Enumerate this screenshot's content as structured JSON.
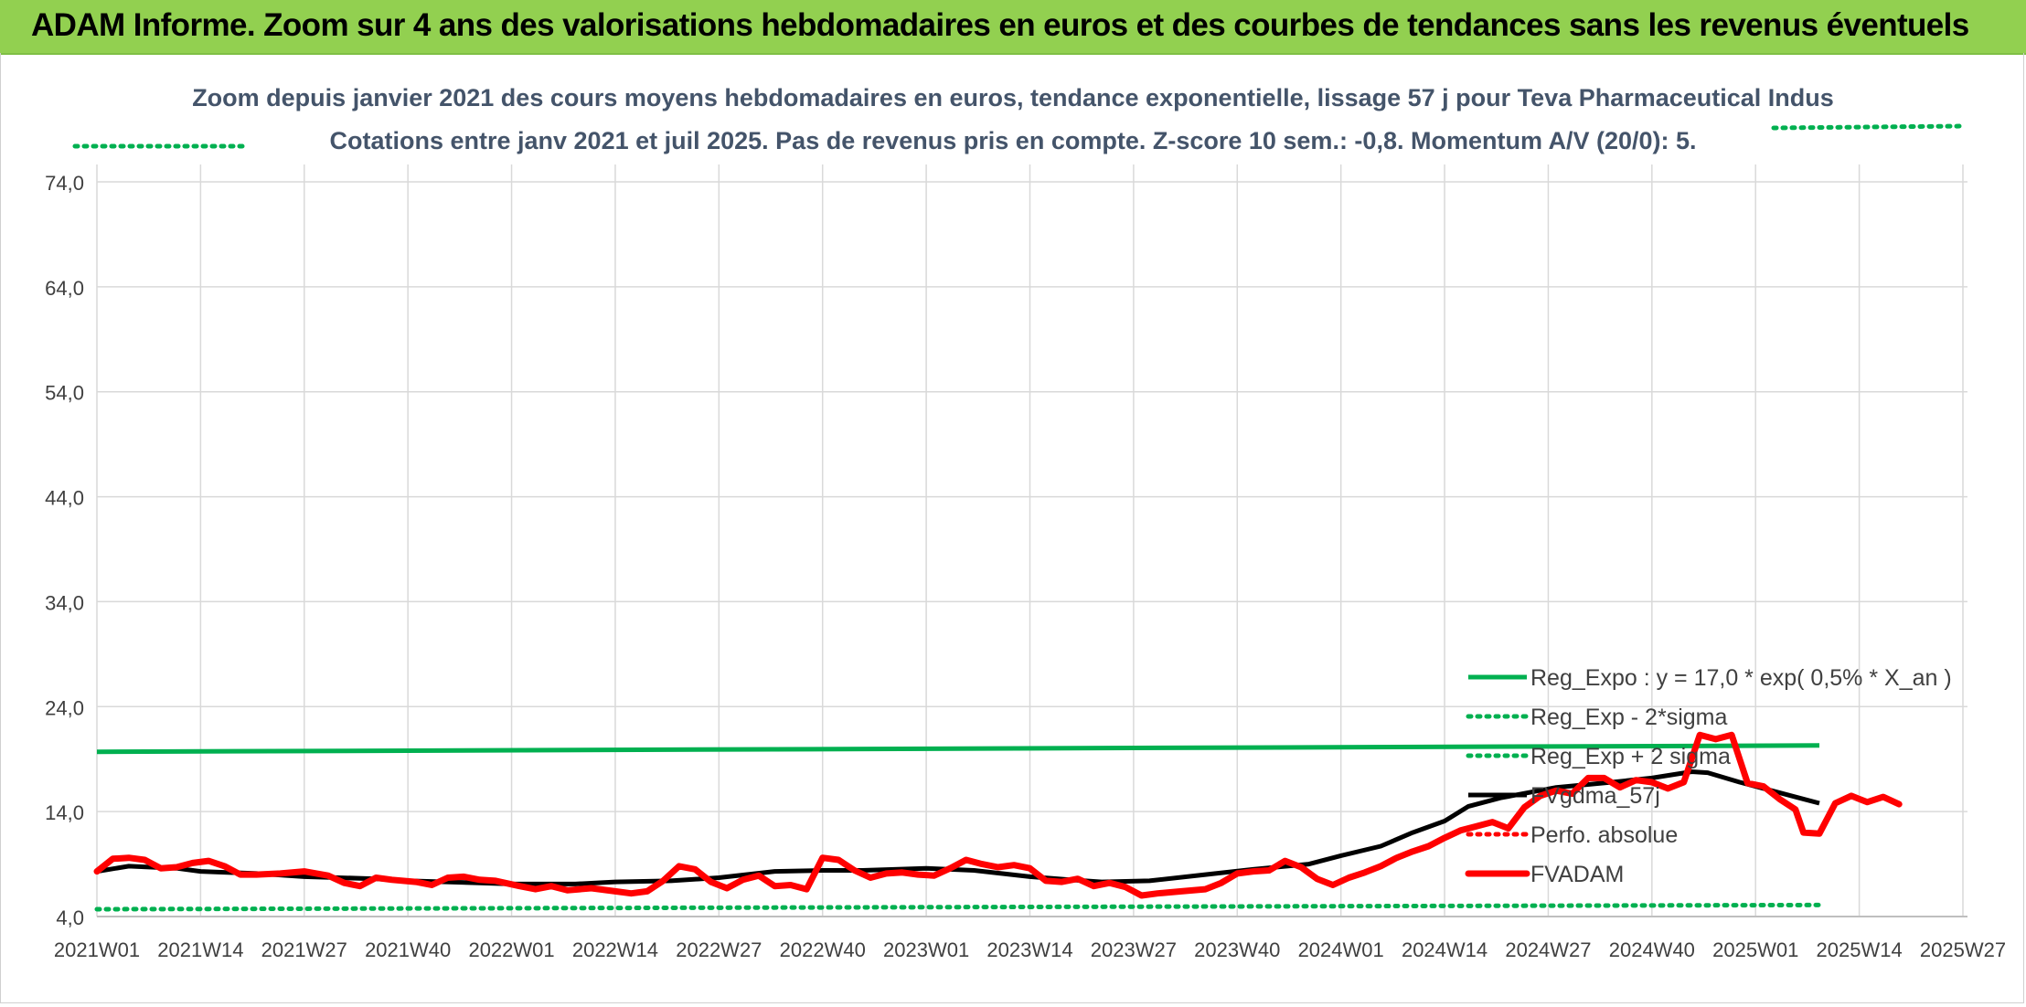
{
  "banner": {
    "title": "ADAM Informe. Zoom sur 4 ans des valorisations hebdomadaires en euros et des courbes de tendances sans les revenus éventuels"
  },
  "colors": {
    "banner": "#92d050",
    "reg_expo": "#00b050",
    "fvadam": "#ff0000",
    "mma": "#000000",
    "grid": "#d9d9d9",
    "title_text": "#44546a"
  },
  "chart_data": {
    "type": "line",
    "title": "Zoom depuis janvier 2021 des cours moyens hebdomadaires en euros, tendance exponentielle, lissage 57 j pour Teva Pharmaceutical Indus",
    "subtitle": "Cotations entre janv 2021 et juil 2025. Pas de revenus pris en compte. Z-score 10 sem.: -0,8. Momentum A/V (20/0): 5.",
    "xlabel": "",
    "ylabel": "",
    "ylim": [
      4.0,
      74.0
    ],
    "yticks": [
      "4,0",
      "14,0",
      "24,0",
      "34,0",
      "44,0",
      "54,0",
      "64,0",
      "74,0"
    ],
    "x_ticks": [
      "2021W01",
      "2021W14",
      "2021W27",
      "2021W40",
      "2022W01",
      "2022W14",
      "2022W27",
      "2022W40",
      "2023W01",
      "2023W14",
      "2023W27",
      "2023W40",
      "2024W01",
      "2024W14",
      "2024W27",
      "2024W40",
      "2025W01",
      "2025W14",
      "2025W27"
    ],
    "grid": true,
    "legend_position": "right",
    "legend": [
      "Reg_Expo : y = 17,0 * exp( 0,5% *  X_an )",
      "Reg_Exp - 2*sigma",
      "Reg_Exp + 2 sigma",
      "FVgdma_57j",
      "Perfo. absolue",
      "FVADAM"
    ],
    "series": [
      {
        "name": "Reg_Expo : y = 17,0 * exp( 0,5% *  X_an )",
        "style": "solid-green",
        "points": [
          [
            0,
            19.7
          ],
          [
            216,
            20.3
          ]
        ]
      },
      {
        "name": "Reg_Exp - 2*sigma",
        "style": "dotted-green",
        "points": [
          [
            0,
            4.7
          ],
          [
            216,
            5.1
          ]
        ]
      },
      {
        "name": "Reg_Exp + 2 sigma",
        "style": "dotted-green",
        "points": [
          [
            0,
            77.2
          ],
          [
            216,
            79.3
          ]
        ]
      },
      {
        "name": "FVgdma_57j",
        "style": "solid-black",
        "points": [
          [
            0,
            8.3
          ],
          [
            4,
            8.8
          ],
          [
            10,
            8.6
          ],
          [
            13,
            8.3
          ],
          [
            20,
            8.1
          ],
          [
            26,
            7.8
          ],
          [
            35,
            7.6
          ],
          [
            39,
            7.4
          ],
          [
            48,
            7.2
          ],
          [
            52,
            7.1
          ],
          [
            60,
            7.1
          ],
          [
            65,
            7.3
          ],
          [
            72,
            7.4
          ],
          [
            78,
            7.7
          ],
          [
            85,
            8.3
          ],
          [
            91,
            8.4
          ],
          [
            96,
            8.4
          ],
          [
            104,
            8.6
          ],
          [
            110,
            8.4
          ],
          [
            117,
            7.8
          ],
          [
            122,
            7.5
          ],
          [
            126,
            7.3
          ],
          [
            132,
            7.4
          ],
          [
            139,
            8.0
          ],
          [
            145,
            8.5
          ],
          [
            152,
            9.0
          ],
          [
            156,
            9.8
          ],
          [
            161,
            10.7
          ],
          [
            165,
            12.0
          ],
          [
            169,
            13.1
          ],
          [
            172,
            14.5
          ],
          [
            176,
            15.3
          ],
          [
            183,
            16.3
          ],
          [
            190,
            16.8
          ],
          [
            195,
            17.2
          ],
          [
            200,
            17.8
          ],
          [
            202,
            17.7
          ],
          [
            206,
            16.8
          ],
          [
            210,
            16.0
          ],
          [
            214,
            15.2
          ],
          [
            216,
            14.8
          ]
        ]
      },
      {
        "name": "FVADAM",
        "style": "thick-red",
        "points": [
          [
            0,
            8.3
          ],
          [
            2,
            9.5
          ],
          [
            4,
            9.6
          ],
          [
            6,
            9.4
          ],
          [
            8,
            8.6
          ],
          [
            10,
            8.7
          ],
          [
            12,
            9.1
          ],
          [
            14,
            9.3
          ],
          [
            16,
            8.8
          ],
          [
            18,
            8.0
          ],
          [
            20,
            8.0
          ],
          [
            23,
            8.1
          ],
          [
            26,
            8.3
          ],
          [
            29,
            7.9
          ],
          [
            31,
            7.2
          ],
          [
            33,
            6.9
          ],
          [
            35,
            7.7
          ],
          [
            37,
            7.5
          ],
          [
            40,
            7.3
          ],
          [
            42,
            7.0
          ],
          [
            44,
            7.7
          ],
          [
            46,
            7.8
          ],
          [
            48,
            7.5
          ],
          [
            50,
            7.4
          ],
          [
            53,
            6.9
          ],
          [
            55,
            6.6
          ],
          [
            57,
            6.9
          ],
          [
            59,
            6.5
          ],
          [
            62,
            6.7
          ],
          [
            65,
            6.4
          ],
          [
            67,
            6.2
          ],
          [
            69,
            6.4
          ],
          [
            71,
            7.4
          ],
          [
            73,
            8.8
          ],
          [
            75,
            8.5
          ],
          [
            77,
            7.3
          ],
          [
            79,
            6.7
          ],
          [
            81,
            7.5
          ],
          [
            83,
            7.9
          ],
          [
            85,
            6.9
          ],
          [
            87,
            7.0
          ],
          [
            89,
            6.6
          ],
          [
            91,
            9.6
          ],
          [
            93,
            9.4
          ],
          [
            95,
            8.4
          ],
          [
            97,
            7.7
          ],
          [
            99,
            8.1
          ],
          [
            101,
            8.2
          ],
          [
            103,
            8.0
          ],
          [
            105,
            7.9
          ],
          [
            107,
            8.6
          ],
          [
            109,
            9.4
          ],
          [
            111,
            9.0
          ],
          [
            113,
            8.7
          ],
          [
            115,
            8.9
          ],
          [
            117,
            8.6
          ],
          [
            119,
            7.4
          ],
          [
            121,
            7.3
          ],
          [
            123,
            7.6
          ],
          [
            125,
            6.9
          ],
          [
            127,
            7.2
          ],
          [
            129,
            6.8
          ],
          [
            131,
            6.0
          ],
          [
            133,
            6.2
          ],
          [
            136,
            6.4
          ],
          [
            139,
            6.6
          ],
          [
            141,
            7.2
          ],
          [
            143,
            8.1
          ],
          [
            145,
            8.3
          ],
          [
            147,
            8.4
          ],
          [
            149,
            9.3
          ],
          [
            151,
            8.7
          ],
          [
            153,
            7.6
          ],
          [
            155,
            7.0
          ],
          [
            157,
            7.7
          ],
          [
            159,
            8.2
          ],
          [
            161,
            8.8
          ],
          [
            163,
            9.6
          ],
          [
            165,
            10.2
          ],
          [
            167,
            10.7
          ],
          [
            169,
            11.5
          ],
          [
            171,
            12.2
          ],
          [
            173,
            12.6
          ],
          [
            175,
            13.0
          ],
          [
            177,
            12.4
          ],
          [
            179,
            14.4
          ],
          [
            181,
            15.5
          ],
          [
            183,
            16.0
          ],
          [
            185,
            15.7
          ],
          [
            187,
            17.2
          ],
          [
            189,
            17.2
          ],
          [
            191,
            16.3
          ],
          [
            193,
            17.0
          ],
          [
            195,
            16.8
          ],
          [
            197,
            16.2
          ],
          [
            199,
            16.8
          ],
          [
            201,
            21.3
          ],
          [
            203,
            20.9
          ],
          [
            205,
            21.3
          ],
          [
            207,
            16.7
          ],
          [
            209,
            16.4
          ],
          [
            211,
            15.2
          ],
          [
            213,
            14.2
          ],
          [
            214,
            12.0
          ],
          [
            216,
            11.9
          ],
          [
            218,
            14.8
          ],
          [
            220,
            15.5
          ],
          [
            222,
            14.9
          ],
          [
            224,
            15.4
          ],
          [
            226,
            14.7
          ]
        ]
      }
    ]
  }
}
